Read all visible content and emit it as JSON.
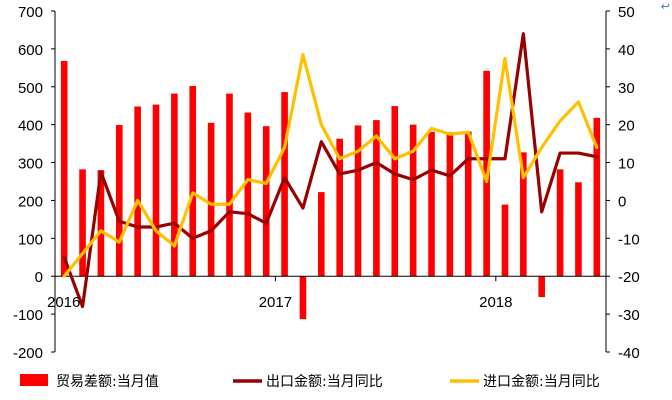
{
  "chart_data": {
    "type": "bar+line",
    "title": "",
    "x_tick_labels": [
      "2016",
      "2017",
      "2018"
    ],
    "x_tick_positions": [
      0,
      12,
      24
    ],
    "left_axis": {
      "ylim": [
        -200,
        700
      ],
      "ticks": [
        700,
        600,
        500,
        400,
        300,
        200,
        100,
        0,
        -100,
        -200
      ]
    },
    "right_axis": {
      "ylim": [
        -40,
        50
      ],
      "ticks": [
        50,
        40,
        30,
        20,
        10,
        0,
        -10,
        -20,
        -30,
        -40
      ]
    },
    "legend_position": "bottom",
    "grid": false,
    "series": [
      {
        "name": "贸易差额:当月值",
        "type": "bar",
        "axis": "left",
        "color": "#ff0000",
        "values": [
          568,
          282,
          280,
          399,
          448,
          453,
          482,
          502,
          405,
          482,
          432,
          396,
          486,
          -113,
          222,
          363,
          398,
          412,
          449,
          400,
          381,
          380,
          382,
          542,
          189,
          327,
          -55,
          282,
          248,
          418
        ]
      },
      {
        "name": "出口金额:当月同比",
        "type": "line",
        "axis": "right",
        "color": "#990000",
        "values": [
          -15,
          -28,
          7.5,
          -5.5,
          -7,
          -7,
          -6,
          -10,
          -8,
          -3,
          -3.5,
          -6,
          6,
          -2,
          15.5,
          7,
          8,
          10,
          7,
          5.5,
          8,
          6.5,
          11,
          11,
          11,
          44,
          -3,
          12.5,
          12.5,
          11.5
        ]
      },
      {
        "name": "进口金额:当月同比",
        "type": "line",
        "axis": "right",
        "color": "#ffc000",
        "values": [
          -20,
          -14,
          -8,
          -11,
          0,
          -8,
          -12,
          2,
          -1,
          -1,
          5.5,
          4.5,
          14,
          38.5,
          20,
          11,
          13,
          17,
          11,
          13,
          19,
          17.5,
          18,
          5,
          37.5,
          6,
          14,
          21,
          26,
          14
        ]
      }
    ]
  },
  "page": {
    "corner_mark": "↩"
  }
}
